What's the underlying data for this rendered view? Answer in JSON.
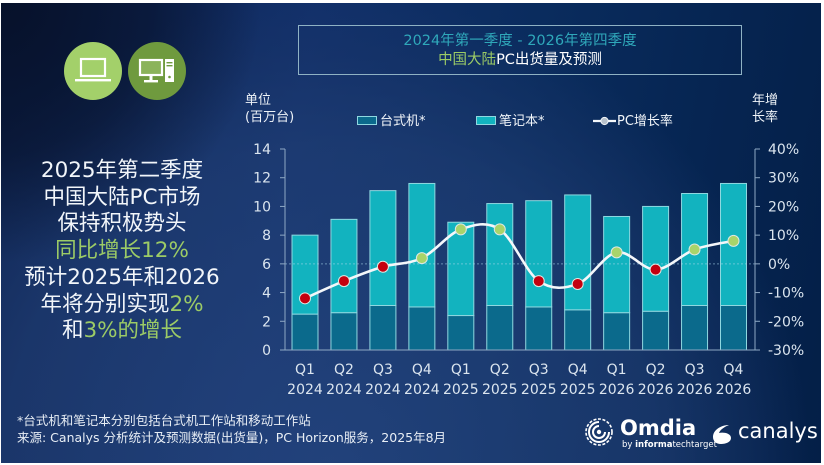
{
  "icons": {
    "laptop": "laptop-icon",
    "desktop": "desktop-icon"
  },
  "headline": {
    "line1": "2025年第二季度",
    "line2": "中国大陆PC市场",
    "line3": "保持积极势头",
    "line4": "同比增长12%",
    "line5": "预计2025年和2026",
    "line6a": "年将分别实现",
    "line6b": "2%",
    "line7a": "和",
    "line7b": "3%的增长"
  },
  "footnote": {
    "line1": "*台式机和笔记本分别包括台式机工作站和移动工作站",
    "line2": "来源: Canalys 分析统计及预测数据(出货量)，PC Horizon服务，2025年8月"
  },
  "logos": {
    "omdia": "Omdia",
    "omdia_by": "by",
    "omdia_informa": "informa",
    "omdia_techtarget": "techtarget",
    "canalys": "canalys"
  },
  "colors": {
    "desktop": "#0b6a8c",
    "notebook": "#12b3bf",
    "bar_border": "#8fd8e0",
    "growth_line": "#f4f7fa",
    "marker_negative": "#c4000f",
    "marker_positive": "#a8d46a",
    "highlight_text": "#9ccb66",
    "laptop_circle": "#a3d06a",
    "desktop_circle": "#6f9a3e"
  },
  "chart_data": {
    "type": "bar",
    "title": {
      "line1": "2024年第一季度 - 2026年第四季度",
      "line2_highlight": "中国大陆",
      "line2_rest": "PC出货量及预测"
    },
    "categories": [
      "Q1 2024",
      "Q2 2024",
      "Q3 2024",
      "Q4 2024",
      "Q1 2025",
      "Q2 2025",
      "Q3 2025",
      "Q4 2025",
      "Q1 2026",
      "Q2 2026",
      "Q3 2026",
      "Q4 2026"
    ],
    "category_quarters": [
      "Q1",
      "Q2",
      "Q3",
      "Q4",
      "Q1",
      "Q2",
      "Q3",
      "Q4",
      "Q1",
      "Q2",
      "Q3",
      "Q4"
    ],
    "category_years": [
      "2024",
      "2024",
      "2024",
      "2024",
      "2025",
      "2025",
      "2025",
      "2025",
      "2026",
      "2026",
      "2026",
      "2026"
    ],
    "ylabel_lines": [
      "单位",
      "(百万台)"
    ],
    "y2label_lines": [
      "年增",
      "长率"
    ],
    "ylim": [
      0,
      14
    ],
    "yticks": [
      0,
      2,
      4,
      6,
      8,
      10,
      12,
      14
    ],
    "y2lim": [
      -30,
      40
    ],
    "y2ticks": [
      -30,
      -20,
      -10,
      0,
      10,
      20,
      30,
      40
    ],
    "y2tick_labels": [
      "-30%",
      "-20%",
      "-10%",
      "0%",
      "10%",
      "20%",
      "30%",
      "40%"
    ],
    "legend": "top",
    "stacked": true,
    "series": [
      {
        "name": "台式机*",
        "type": "bar",
        "axis": "left",
        "unit": "百万台",
        "values": [
          2.5,
          2.6,
          3.1,
          3.0,
          2.4,
          3.1,
          3.0,
          2.8,
          2.6,
          2.7,
          3.1,
          3.1
        ]
      },
      {
        "name": "笔记本*",
        "type": "bar",
        "axis": "left",
        "unit": "百万台",
        "values": [
          5.5,
          6.5,
          8.0,
          8.6,
          6.5,
          7.1,
          7.4,
          8.0,
          6.7,
          7.3,
          7.8,
          8.5
        ]
      },
      {
        "name": "PC增长率",
        "type": "line",
        "axis": "right",
        "unit": "%",
        "values": [
          -12,
          -6,
          -1,
          2,
          12,
          12,
          -6,
          -7,
          4,
          -2,
          5,
          8
        ]
      }
    ],
    "totals": [
      8.0,
      9.1,
      11.1,
      11.6,
      8.9,
      10.2,
      10.4,
      10.8,
      9.3,
      10.0,
      10.9,
      11.6
    ],
    "reference_line": {
      "axis": "right",
      "value": 0,
      "style": "dotted"
    }
  }
}
